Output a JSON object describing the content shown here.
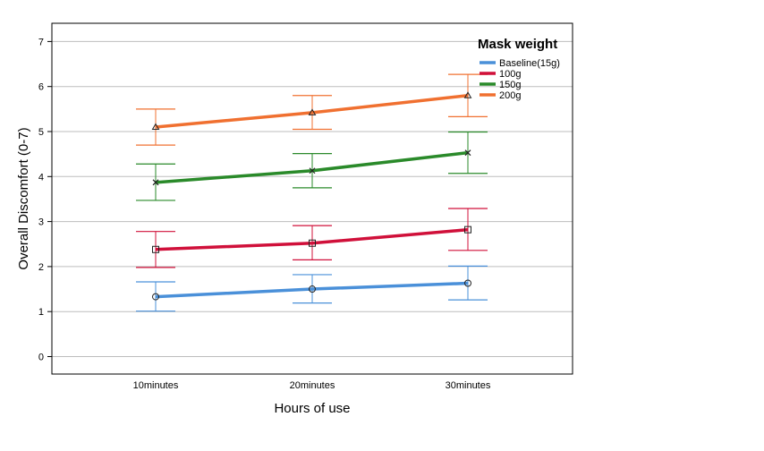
{
  "chart_data": {
    "type": "line",
    "xlabel": "Hours of use",
    "ylabel": "Overall Discomfort (0-7)",
    "categories": [
      "10minutes",
      "20minutes",
      "30minutes"
    ],
    "ylim": [
      0,
      7
    ],
    "yticks": [
      0,
      1,
      2,
      3,
      4,
      5,
      6,
      7
    ],
    "grid": true,
    "legend": {
      "title": "Mask weight",
      "position": "top-right"
    },
    "error_bars": true,
    "series": [
      {
        "name": "Baseline(15g)",
        "color": "#4a90d9",
        "marker": "circle",
        "values": [
          1.33,
          1.5,
          1.63
        ],
        "err_low": [
          1.01,
          1.19,
          1.26
        ],
        "err_high": [
          1.66,
          1.82,
          2.01
        ]
      },
      {
        "name": "100g",
        "color": "#d0103a",
        "marker": "square",
        "values": [
          2.38,
          2.52,
          2.82
        ],
        "err_low": [
          1.98,
          2.15,
          2.36
        ],
        "err_high": [
          2.78,
          2.91,
          3.29
        ]
      },
      {
        "name": "150g",
        "color": "#2a8a2a",
        "marker": "x",
        "values": [
          3.87,
          4.13,
          4.53
        ],
        "err_low": [
          3.47,
          3.75,
          4.07
        ],
        "err_high": [
          4.28,
          4.51,
          4.99
        ]
      },
      {
        "name": "200g",
        "color": "#f07030",
        "marker": "triangle",
        "values": [
          5.1,
          5.42,
          5.8
        ],
        "err_low": [
          4.7,
          5.05,
          5.33
        ],
        "err_high": [
          5.5,
          5.8,
          6.27
        ]
      }
    ]
  }
}
